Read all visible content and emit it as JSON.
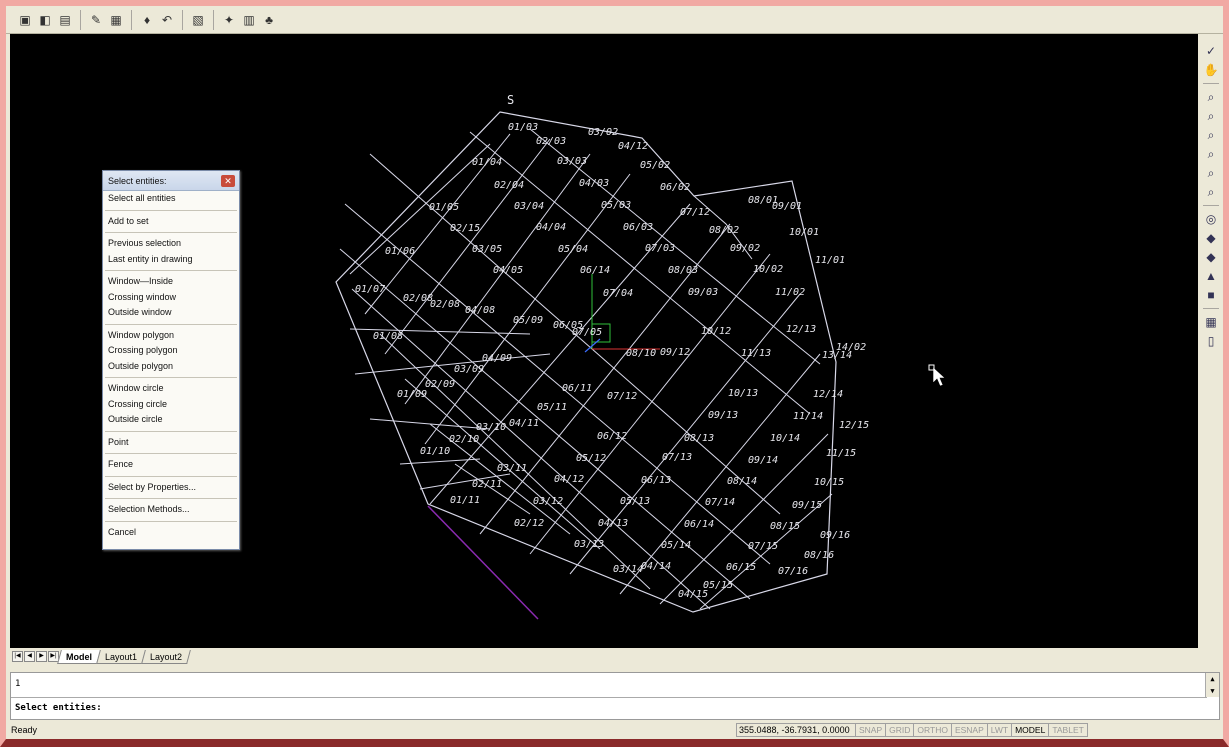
{
  "toolbar": {
    "icons": [
      "save-icon",
      "layers-icon",
      "properties-icon",
      "match-properties-icon",
      "design-center-icon",
      "brush-icon",
      "undo-redo-icon",
      "plot-icon",
      "render-icon",
      "print-preview-icon",
      "publish-icon"
    ]
  },
  "right_toolbar": {
    "icons": [
      "pan-check-icon",
      "pan-hand-icon",
      "zoom-realtime-icon",
      "zoom-previous-icon",
      "zoom-window-icon",
      "zoom-extents-icon",
      "zoom-scale-icon",
      "zoom-in-icon",
      "orbit-icon",
      "render-shade-icon",
      "sheet-set-icon",
      "paint-icon",
      "block-icon",
      "table-icon",
      "layout-icon"
    ]
  },
  "menu": {
    "title": "Select entities:",
    "groups": [
      [
        "Select all entities"
      ],
      [
        "Add to set"
      ],
      [
        "Previous selection",
        "Last entity in drawing"
      ],
      [
        "Window—Inside",
        "Crossing window",
        "Outside window"
      ],
      [
        "Window polygon",
        "Crossing polygon",
        "Outside polygon"
      ],
      [
        "Window circle",
        "Crossing circle",
        "Outside circle"
      ],
      [
        "Point"
      ],
      [
        "Fence"
      ],
      [
        "Select by Properties..."
      ],
      [
        "Selection Methods..."
      ],
      [
        "Cancel"
      ]
    ]
  },
  "drawing": {
    "north_label": "S",
    "labels": [
      {
        "t": "01/03"
      },
      {
        "t": "02/03"
      },
      {
        "t": "03/02"
      },
      {
        "t": "04/12"
      },
      {
        "t": "01/04"
      },
      {
        "t": "03/03"
      },
      {
        "t": "05/02"
      },
      {
        "t": "02/04"
      },
      {
        "t": "04/03"
      },
      {
        "t": "06/02"
      },
      {
        "t": "08/01"
      },
      {
        "t": "09/01"
      },
      {
        "t": "01/05"
      },
      {
        "t": "03/04"
      },
      {
        "t": "05/03"
      },
      {
        "t": "07/12"
      },
      {
        "t": "02/15"
      },
      {
        "t": "04/04"
      },
      {
        "t": "06/03"
      },
      {
        "t": "08/02"
      },
      {
        "t": "10/01"
      },
      {
        "t": "01/06"
      },
      {
        "t": "03/05"
      },
      {
        "t": "05/04"
      },
      {
        "t": "07/03"
      },
      {
        "t": "09/02"
      },
      {
        "t": "04/05"
      },
      {
        "t": "06/14"
      },
      {
        "t": "08/03"
      },
      {
        "t": "10/02"
      },
      {
        "t": "11/01"
      },
      {
        "t": "01/07"
      },
      {
        "t": "02/08"
      },
      {
        "t": "02/08"
      },
      {
        "t": "04/08"
      },
      {
        "t": "07/04"
      },
      {
        "t": "09/03"
      },
      {
        "t": "11/02"
      },
      {
        "t": "05/09"
      },
      {
        "t": "06/05"
      },
      {
        "t": "07/05"
      },
      {
        "t": "10/12"
      },
      {
        "t": "12/13"
      },
      {
        "t": "01/08"
      },
      {
        "t": "08/10"
      },
      {
        "t": "09/12"
      },
      {
        "t": "11/13"
      },
      {
        "t": "13/14"
      },
      {
        "t": "14/02"
      },
      {
        "t": "04/09"
      },
      {
        "t": "03/09"
      },
      {
        "t": "02/09"
      },
      {
        "t": "01/09"
      },
      {
        "t": "06/11"
      },
      {
        "t": "07/12"
      },
      {
        "t": "10/13"
      },
      {
        "t": "12/14"
      },
      {
        "t": "05/11"
      },
      {
        "t": "09/13"
      },
      {
        "t": "11/14"
      },
      {
        "t": "03/10"
      },
      {
        "t": "04/11"
      },
      {
        "t": "12/15"
      },
      {
        "t": "02/10"
      },
      {
        "t": "06/12"
      },
      {
        "t": "08/13"
      },
      {
        "t": "10/14"
      },
      {
        "t": "01/10"
      },
      {
        "t": "05/12"
      },
      {
        "t": "07/13"
      },
      {
        "t": "09/14"
      },
      {
        "t": "11/15"
      },
      {
        "t": "03/11"
      },
      {
        "t": "04/12"
      },
      {
        "t": "06/13"
      },
      {
        "t": "08/14"
      },
      {
        "t": "02/11"
      },
      {
        "t": "10/15"
      },
      {
        "t": "01/11"
      },
      {
        "t": "03/12"
      },
      {
        "t": "05/13"
      },
      {
        "t": "07/14"
      },
      {
        "t": "09/15"
      },
      {
        "t": "02/12"
      },
      {
        "t": "04/13"
      },
      {
        "t": "06/14"
      },
      {
        "t": "08/15"
      },
      {
        "t": "09/16"
      },
      {
        "t": "03/13"
      },
      {
        "t": "05/14"
      },
      {
        "t": "07/15"
      },
      {
        "t": "08/16"
      },
      {
        "t": "04/14"
      },
      {
        "t": "03/14"
      },
      {
        "t": "06/15"
      },
      {
        "t": "07/16"
      },
      {
        "t": "05/15"
      },
      {
        "t": "04/15"
      }
    ]
  },
  "tabs": {
    "nav": [
      "|◀",
      "◀",
      "▶",
      "▶|"
    ],
    "items": [
      {
        "label": "Model",
        "active": true
      },
      {
        "label": "Layout1",
        "active": false
      },
      {
        "label": "Layout2",
        "active": false
      }
    ]
  },
  "command": {
    "line1": "1",
    "line2": "Select entities:"
  },
  "status": {
    "ready": "Ready",
    "coords": "355.0488, -36.7931, 0.0000",
    "buttons": [
      {
        "label": "SNAP",
        "on": false
      },
      {
        "label": "GRID",
        "on": false
      },
      {
        "label": "ORTHO",
        "on": false
      },
      {
        "label": "ESNAP",
        "on": false
      },
      {
        "label": "LWT",
        "on": false
      },
      {
        "label": "MODEL",
        "on": true
      },
      {
        "label": "TABLET",
        "on": false
      }
    ]
  }
}
